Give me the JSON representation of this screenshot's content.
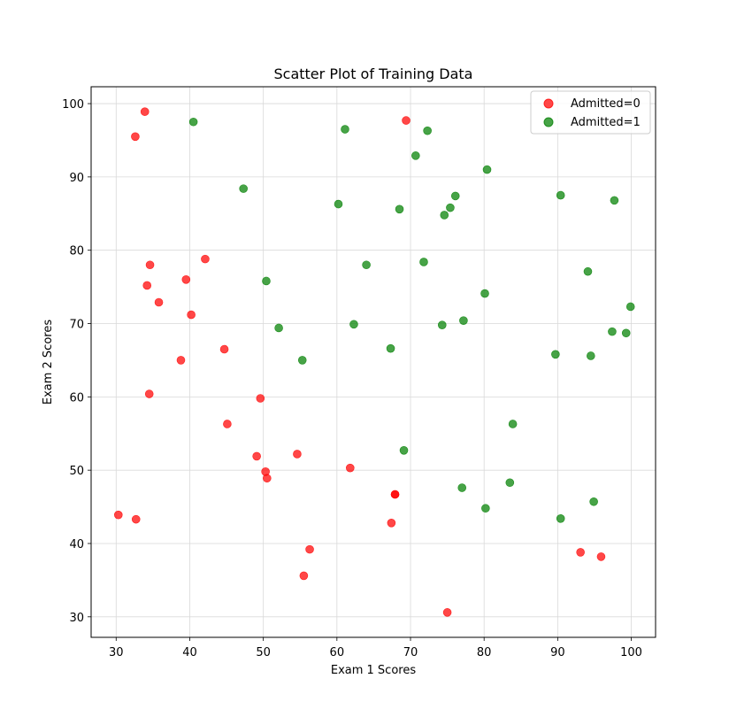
{
  "chart_data": {
    "type": "scatter",
    "title": "Scatter Plot of Training Data",
    "xlabel": "Exam 1 Scores",
    "ylabel": "Exam 2 Scores",
    "xlim": [
      26.6,
      103.3
    ],
    "ylim": [
      27.2,
      102.3
    ],
    "xticks": [
      "30",
      "40",
      "50",
      "60",
      "70",
      "80",
      "90",
      "100"
    ],
    "yticks": [
      "30",
      "40",
      "50",
      "60",
      "70",
      "80",
      "90",
      "100"
    ],
    "grid": true,
    "legend_position": "top-right",
    "series": [
      {
        "name": "Admitted=0",
        "color": "#ff0000",
        "points": [
          [
            34.6,
            78.0
          ],
          [
            30.3,
            43.9
          ],
          [
            35.8,
            72.9
          ],
          [
            45.1,
            56.3
          ],
          [
            95.9,
            38.2
          ],
          [
            75.0,
            30.6
          ],
          [
            39.5,
            76.0
          ],
          [
            67.9,
            46.7
          ],
          [
            69.4,
            97.7
          ],
          [
            67.9,
            46.7
          ],
          [
            33.9,
            98.9
          ],
          [
            32.6,
            95.5
          ],
          [
            34.2,
            75.2
          ],
          [
            40.2,
            71.2
          ],
          [
            42.1,
            78.8
          ],
          [
            44.7,
            66.5
          ],
          [
            38.8,
            65.0
          ],
          [
            34.5,
            60.4
          ],
          [
            49.6,
            59.8
          ],
          [
            49.1,
            51.9
          ],
          [
            50.3,
            49.8
          ],
          [
            50.5,
            48.9
          ],
          [
            54.6,
            52.2
          ],
          [
            61.8,
            50.3
          ],
          [
            67.4,
            42.8
          ],
          [
            56.3,
            39.2
          ],
          [
            55.5,
            35.6
          ],
          [
            32.7,
            43.3
          ],
          [
            93.1,
            38.8
          ]
        ]
      },
      {
        "name": "Admitted=1",
        "color": "#008000",
        "points": [
          [
            40.5,
            97.5
          ],
          [
            61.1,
            96.5
          ],
          [
            72.3,
            96.3
          ],
          [
            70.7,
            92.9
          ],
          [
            80.4,
            91.0
          ],
          [
            47.3,
            88.4
          ],
          [
            60.2,
            86.3
          ],
          [
            68.5,
            85.6
          ],
          [
            76.1,
            87.4
          ],
          [
            75.4,
            85.8
          ],
          [
            74.6,
            84.8
          ],
          [
            90.4,
            87.5
          ],
          [
            97.7,
            86.8
          ],
          [
            64.0,
            78.0
          ],
          [
            71.8,
            78.4
          ],
          [
            50.4,
            75.8
          ],
          [
            94.1,
            77.1
          ],
          [
            80.1,
            74.1
          ],
          [
            52.1,
            69.4
          ],
          [
            62.3,
            69.9
          ],
          [
            74.3,
            69.8
          ],
          [
            77.2,
            70.4
          ],
          [
            99.9,
            72.3
          ],
          [
            97.4,
            68.9
          ],
          [
            99.3,
            68.7
          ],
          [
            55.3,
            65.0
          ],
          [
            67.3,
            66.6
          ],
          [
            89.7,
            65.8
          ],
          [
            94.5,
            65.6
          ],
          [
            83.9,
            56.3
          ],
          [
            69.1,
            52.7
          ],
          [
            77.0,
            47.6
          ],
          [
            83.5,
            48.3
          ],
          [
            80.2,
            44.8
          ],
          [
            90.4,
            43.4
          ],
          [
            94.9,
            45.7
          ]
        ]
      }
    ]
  }
}
